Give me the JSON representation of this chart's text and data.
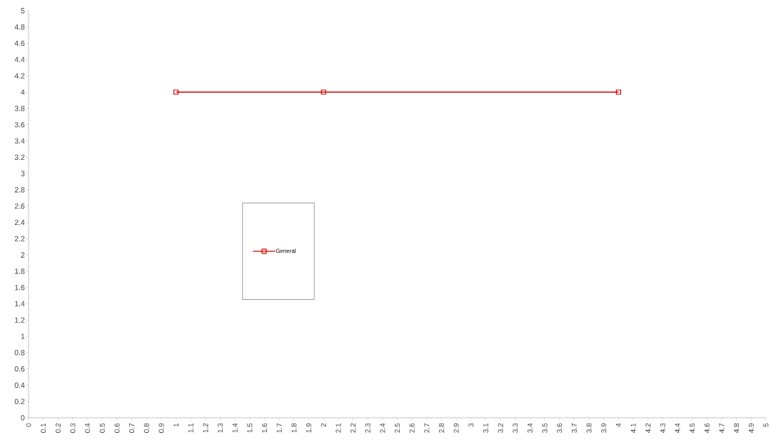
{
  "chart_data": {
    "type": "line",
    "x": [
      1,
      2,
      4
    ],
    "series": [
      {
        "name": "General",
        "color": "#d40000",
        "values": [
          4,
          4,
          4
        ]
      }
    ],
    "xlim": [
      0,
      5
    ],
    "ylim": [
      0,
      5
    ],
    "xticks": [
      0,
      0.1,
      0.2,
      0.3,
      0.4,
      0.5,
      0.6,
      0.7,
      0.8,
      0.9,
      1,
      1.1,
      1.2,
      1.3,
      1.4,
      1.5,
      1.6,
      1.7,
      1.8,
      1.9,
      2,
      2.1,
      2.2,
      2.3,
      2.4,
      2.5,
      2.6,
      2.7,
      2.8,
      2.9,
      3,
      3.1,
      3.2,
      3.3,
      3.4,
      3.5,
      3.6,
      3.7,
      3.8,
      3.9,
      4,
      4.1,
      4.2,
      4.3,
      4.4,
      4.5,
      4.6,
      4.7,
      4.8,
      4.9,
      5
    ],
    "yticks": [
      0,
      0.2,
      0.4,
      0.6,
      0.8,
      1,
      1.2,
      1.4,
      1.6,
      1.8,
      2,
      2.2,
      2.4,
      2.6,
      2.8,
      3,
      3.2,
      3.4,
      3.6,
      3.8,
      4,
      4.2,
      4.4,
      4.6,
      4.8,
      5
    ],
    "legend": "center left",
    "marker": "square",
    "line_style": "solid",
    "grid": false
  }
}
